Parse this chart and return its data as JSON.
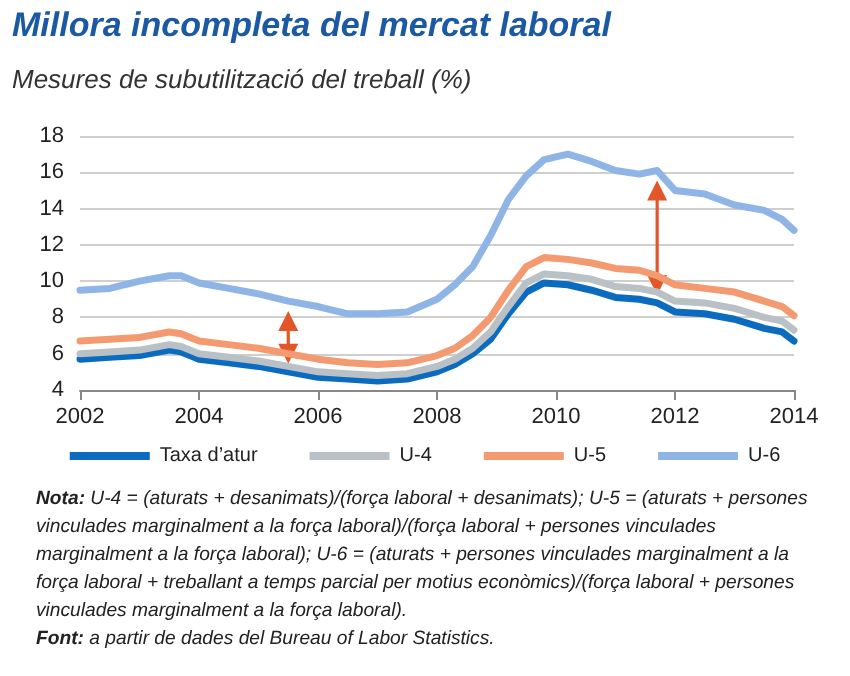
{
  "chart_data": {
    "type": "line",
    "title": "Millora incompleta del mercat laboral",
    "subtitle": "Mesures de subutilització del treball (%)",
    "x": [
      2002,
      2002.5,
      2003,
      2003.5,
      2003.7,
      2004,
      2004.5,
      2005,
      2005.5,
      2006,
      2006.5,
      2007,
      2007.5,
      2008,
      2008.3,
      2008.6,
      2008.9,
      2009.2,
      2009.5,
      2009.8,
      2010.2,
      2010.6,
      2011,
      2011.4,
      2011.7,
      2012,
      2012.5,
      2013,
      2013.5,
      2013.8,
      2014
    ],
    "series": [
      {
        "name": "Taxa d’atur",
        "color": "#0b6bbf",
        "values": [
          5.7,
          5.8,
          5.9,
          6.2,
          6.1,
          5.7,
          5.5,
          5.3,
          5.0,
          4.7,
          4.6,
          4.5,
          4.6,
          5.0,
          5.4,
          6.0,
          6.8,
          8.2,
          9.4,
          9.9,
          9.8,
          9.5,
          9.1,
          9.0,
          8.8,
          8.3,
          8.2,
          7.9,
          7.4,
          7.2,
          6.7
        ]
      },
      {
        "name": "U-4",
        "color": "#b9c1c6",
        "values": [
          6.0,
          6.1,
          6.2,
          6.5,
          6.4,
          6.0,
          5.8,
          5.6,
          5.3,
          5.0,
          4.9,
          4.8,
          4.9,
          5.3,
          5.7,
          6.3,
          7.2,
          8.6,
          9.9,
          10.4,
          10.3,
          10.1,
          9.7,
          9.6,
          9.4,
          8.9,
          8.8,
          8.5,
          8.0,
          7.8,
          7.3
        ]
      },
      {
        "name": "U-5",
        "color": "#f49a70",
        "values": [
          6.7,
          6.8,
          6.9,
          7.2,
          7.1,
          6.7,
          6.5,
          6.3,
          6.0,
          5.7,
          5.5,
          5.4,
          5.5,
          5.9,
          6.3,
          7.0,
          8.0,
          9.5,
          10.8,
          11.3,
          11.2,
          11.0,
          10.7,
          10.6,
          10.3,
          9.8,
          9.6,
          9.4,
          8.9,
          8.6,
          8.1
        ]
      },
      {
        "name": "U-6",
        "color": "#8fb4e6",
        "values": [
          9.5,
          9.6,
          10.0,
          10.3,
          10.3,
          9.9,
          9.6,
          9.3,
          8.9,
          8.6,
          8.2,
          8.2,
          8.3,
          9.0,
          9.8,
          10.8,
          12.5,
          14.5,
          15.8,
          16.7,
          17.0,
          16.6,
          16.1,
          15.9,
          16.1,
          15.0,
          14.8,
          14.2,
          13.9,
          13.4,
          12.8
        ]
      }
    ],
    "xlim": [
      2002,
      2014
    ],
    "xticks": [
      2002,
      2004,
      2006,
      2008,
      2010,
      2012,
      2014
    ],
    "ylim": [
      4,
      18
    ],
    "yticks": [
      4,
      6,
      8,
      10,
      12,
      14,
      16,
      18
    ],
    "grid": "y",
    "legend": "bottom",
    "marker": "none",
    "line_style": "solid",
    "annotations": [
      "Nota: U-4 = (aturats + desanimats)/(força laboral + desanimats); U-5 = (aturats + persones vinculades marginalment a la força laboral)/(força laboral + persones vinculades marginalment a la força laboral); U-6 = (aturats + persones vinculades marginalment a la força laboral + treballant a temps parcial per motius econòmics)/(força laboral + persones vinculades marginalment a la força laboral).",
      "Font: a partir de dades del Bureau of Labor Statistics."
    ]
  }
}
